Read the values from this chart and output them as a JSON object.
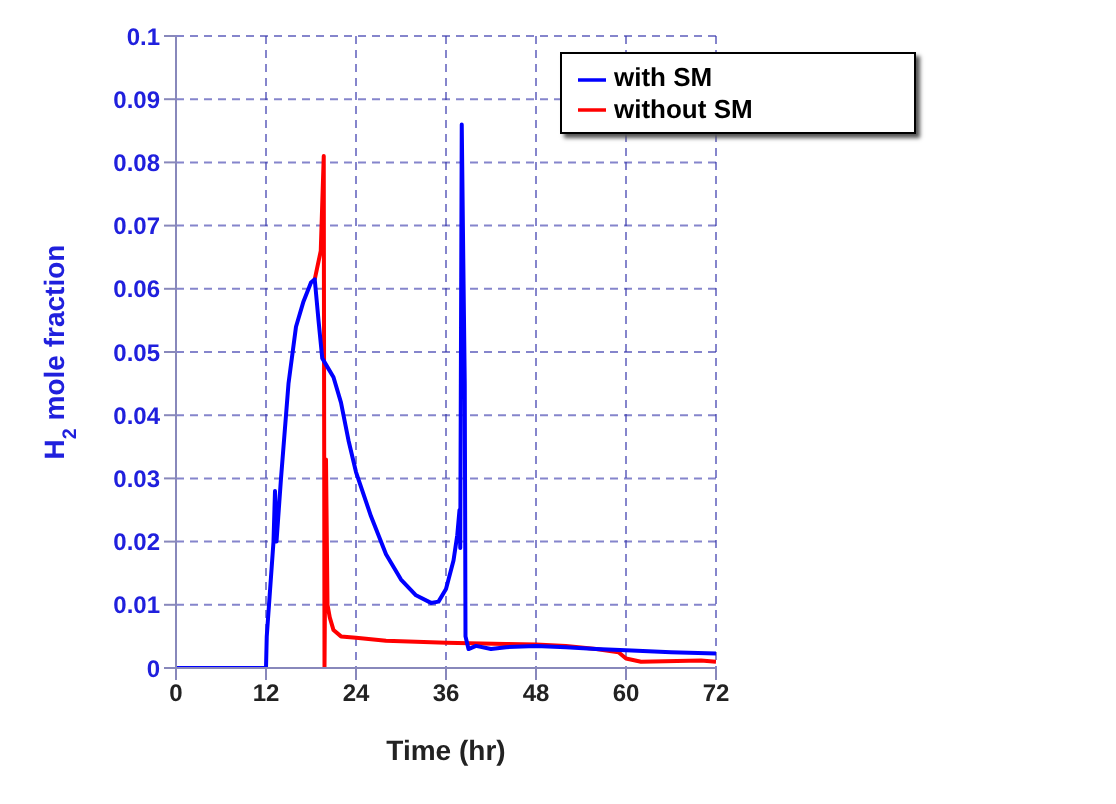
{
  "chart_data": {
    "type": "line",
    "xlabel": "Time (hr)",
    "ylabel": "H$_{2}$ mole fraction",
    "xlim": [
      0,
      72
    ],
    "xticks": [
      0,
      12,
      24,
      36,
      48,
      60,
      72
    ],
    "ylim": [
      0,
      0.1
    ],
    "yticks": [
      0,
      0.01,
      0.02,
      0.03,
      0.04,
      0.05,
      0.06,
      0.07,
      0.08,
      0.09,
      0.1
    ],
    "grid": true,
    "legend": "top right",
    "marker": "none",
    "line_style": "solid",
    "series": [
      {
        "name": "without SM",
        "color": "#ff0000",
        "x": [
          18.5,
          19.3,
          19.7,
          19.8,
          20,
          20.2,
          20.5,
          21,
          22,
          24,
          28,
          36,
          44,
          48,
          52,
          56,
          59,
          60,
          62,
          70,
          72
        ],
        "values": [
          0.0615,
          0.066,
          0.081,
          0,
          0.033,
          0.01,
          0.008,
          0.006,
          0.005,
          0.0048,
          0.0043,
          0.004,
          0.0038,
          0.0037,
          0.0035,
          0.003,
          0.0025,
          0.0015,
          0.001,
          0.0012,
          0.001
        ]
      },
      {
        "name": "with SM",
        "color": "#0000ff",
        "x": [
          0,
          12,
          12.1,
          13,
          13.2,
          13.4,
          14,
          15,
          16,
          17,
          18,
          18.5,
          19,
          19.5,
          20,
          21,
          22,
          23,
          24,
          26,
          28,
          30,
          32,
          34,
          35,
          36,
          37,
          37.5,
          37.8,
          37.9,
          38.1,
          38.3,
          38.5,
          38.6,
          39,
          40,
          42,
          44,
          48,
          52,
          56,
          60,
          66,
          72
        ],
        "values": [
          0,
          0,
          0.005,
          0.02,
          0.028,
          0.02,
          0.03,
          0.045,
          0.054,
          0.058,
          0.061,
          0.0615,
          0.055,
          0.049,
          0.048,
          0.046,
          0.042,
          0.036,
          0.031,
          0.024,
          0.018,
          0.014,
          0.0115,
          0.0103,
          0.0105,
          0.0125,
          0.017,
          0.021,
          0.025,
          0.019,
          0.086,
          0.065,
          0.045,
          0.005,
          0.003,
          0.0035,
          0.003,
          0.0033,
          0.0035,
          0.0033,
          0.003,
          0.0028,
          0.0025,
          0.0023
        ]
      }
    ]
  }
}
